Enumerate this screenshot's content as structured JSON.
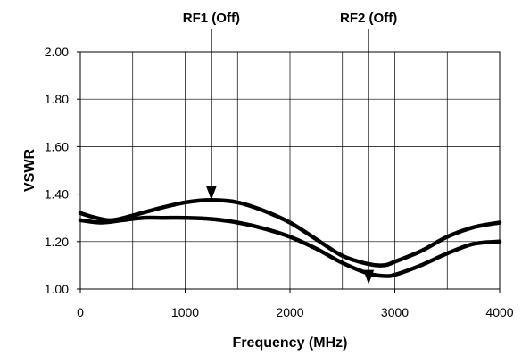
{
  "chart_data": {
    "type": "line",
    "title": "",
    "xlabel": "Frequency (MHz)",
    "ylabel": "VSWR",
    "xlim": [
      0,
      4000
    ],
    "ylim": [
      1.0,
      2.0
    ],
    "x_ticks": [
      0,
      1000,
      2000,
      3000,
      4000
    ],
    "y_ticks": [
      1.0,
      1.2,
      1.4,
      1.6,
      1.8,
      2.0
    ],
    "x_tick_labels": [
      "0",
      "1000",
      "2000",
      "3000",
      "4000"
    ],
    "y_tick_labels": [
      "1.00",
      "1.20",
      "1.40",
      "1.60",
      "1.80",
      "2.00"
    ],
    "x_minor_step": 500,
    "grid": true,
    "legend": "none",
    "line_color": "#000000",
    "series": [
      {
        "x": [
          0,
          150,
          300,
          500,
          750,
          1000,
          1250,
          1500,
          1750,
          2000,
          2250,
          2500,
          2750,
          2900,
          3000,
          3250,
          3500,
          3750,
          4000
        ],
        "values": [
          1.32,
          1.3,
          1.29,
          1.31,
          1.34,
          1.365,
          1.375,
          1.365,
          1.33,
          1.28,
          1.21,
          1.14,
          1.105,
          1.1,
          1.115,
          1.16,
          1.22,
          1.26,
          1.28
        ]
      },
      {
        "x": [
          0,
          200,
          400,
          600,
          800,
          1000,
          1250,
          1500,
          1750,
          2000,
          2250,
          2500,
          2750,
          2900,
          3000,
          3250,
          3500,
          3750,
          4000
        ],
        "values": [
          1.29,
          1.28,
          1.29,
          1.3,
          1.3,
          1.3,
          1.295,
          1.28,
          1.255,
          1.22,
          1.17,
          1.11,
          1.065,
          1.055,
          1.06,
          1.1,
          1.15,
          1.19,
          1.2
        ]
      }
    ],
    "annotations": [
      {
        "text": "RF1 (Off)",
        "x": 1250,
        "y": 1.375
      },
      {
        "text": "RF2 (Off)",
        "x": 2750,
        "y": 1.02
      }
    ]
  }
}
